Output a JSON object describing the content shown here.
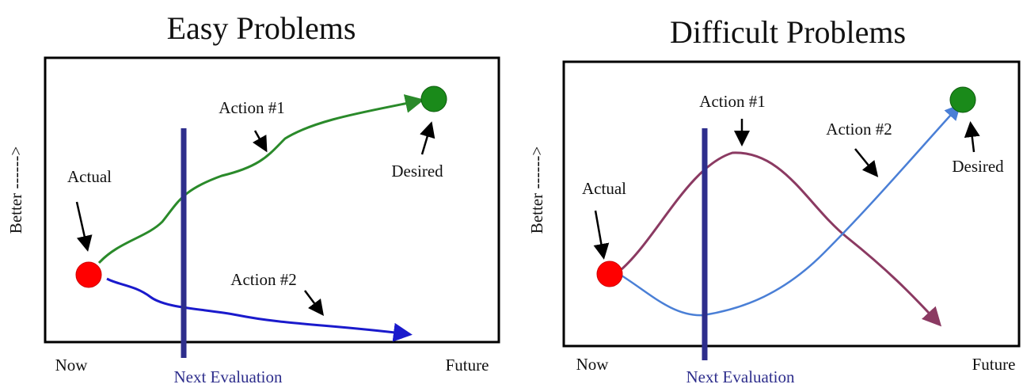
{
  "panels": [
    {
      "title": "Easy Problems",
      "y_label": "Better ------>",
      "actual": "Actual",
      "desired": "Desired",
      "action1": "Action #1",
      "action2": "Action #2",
      "now": "Now",
      "next_evaluation": "Next Evaluation",
      "future": "Future"
    },
    {
      "title": "Difficult Problems",
      "y_label": "Better ------>",
      "actual": "Actual",
      "desired": "Desired",
      "action1": "Action #1",
      "action2": "Action #2",
      "now": "Now",
      "next_evaluation": "Next Evaluation",
      "future": "Future"
    }
  ]
}
